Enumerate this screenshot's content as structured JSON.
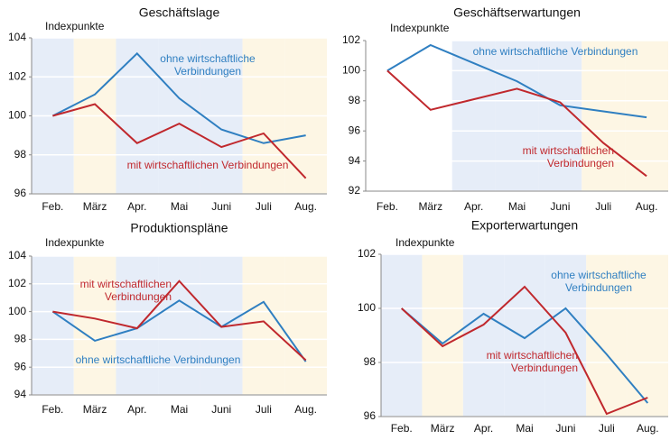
{
  "chart_data": [
    {
      "type": "line",
      "title": "Geschäftslage",
      "y_label": "Indexpunkte",
      "categories": [
        "Feb.",
        "März",
        "Apr.",
        "Mai",
        "Juni",
        "Juli",
        "Aug."
      ],
      "series": [
        {
          "name": "ohne wirtschaftliche Verbindungen",
          "color": "#2f7fc1",
          "values": [
            100,
            101.1,
            103.2,
            100.9,
            99.3,
            98.6,
            99.0
          ]
        },
        {
          "name": "mit wirtschaftlichen Verbindungen",
          "color": "#c0282d",
          "values": [
            100,
            100.6,
            98.6,
            99.6,
            98.4,
            99.1,
            96.8
          ]
        }
      ],
      "ylim": [
        96,
        104
      ],
      "yticks": [
        96,
        98,
        100,
        102,
        104
      ],
      "grid": true
    },
    {
      "type": "line",
      "title": "Geschäftserwartungen",
      "y_label": "Indexpunkte",
      "categories": [
        "Feb.",
        "März",
        "Apr.",
        "Mai",
        "Juni",
        "Juli",
        "Aug."
      ],
      "series": [
        {
          "name": "ohne wirtschaftliche Verbindungen",
          "color": "#2f7fc1",
          "values": [
            100,
            101.7,
            100.5,
            99.3,
            97.7,
            97.3,
            96.9
          ]
        },
        {
          "name": "mit wirtschaftlichen Verbindungen",
          "color": "#c0282d",
          "values": [
            100,
            97.4,
            98.1,
            98.8,
            97.9,
            95.2,
            93.0
          ]
        }
      ],
      "ylim": [
        92,
        102
      ],
      "yticks": [
        92,
        94,
        96,
        98,
        100,
        102
      ],
      "grid": true
    },
    {
      "type": "line",
      "title": "Produktionspläne",
      "y_label": "Indexpunkte",
      "categories": [
        "Feb.",
        "März",
        "Apr.",
        "Mai",
        "Juni",
        "Juli",
        "Aug."
      ],
      "series": [
        {
          "name": "ohne wirtschaftliche Verbindungen",
          "color": "#2f7fc1",
          "values": [
            100,
            97.9,
            98.8,
            100.8,
            98.9,
            100.7,
            96.4
          ]
        },
        {
          "name": "mit wirtschaftlichen Verbindungen",
          "color": "#c0282d",
          "values": [
            100,
            99.5,
            98.8,
            102.2,
            98.9,
            99.3,
            96.5
          ]
        }
      ],
      "ylim": [
        94,
        104
      ],
      "yticks": [
        94,
        96,
        98,
        100,
        102,
        104
      ],
      "grid": true
    },
    {
      "type": "line",
      "title": "Exporterwartungen",
      "y_label": "Indexpunkte",
      "categories": [
        "Feb.",
        "März",
        "Apr.",
        "Mai",
        "Juni",
        "Juli",
        "Aug."
      ],
      "series": [
        {
          "name": "ohne wirtschaftliche Verbindungen",
          "color": "#2f7fc1",
          "values": [
            100,
            98.7,
            99.8,
            98.9,
            100.0,
            98.3,
            96.5
          ]
        },
        {
          "name": "mit wirtschaftlichen Verbindungen",
          "color": "#c0282d",
          "values": [
            100,
            98.6,
            99.4,
            100.8,
            99.1,
            96.1,
            96.7
          ]
        }
      ],
      "ylim": [
        96,
        102
      ],
      "yticks": [
        96,
        98,
        100,
        102
      ],
      "grid": true
    }
  ]
}
